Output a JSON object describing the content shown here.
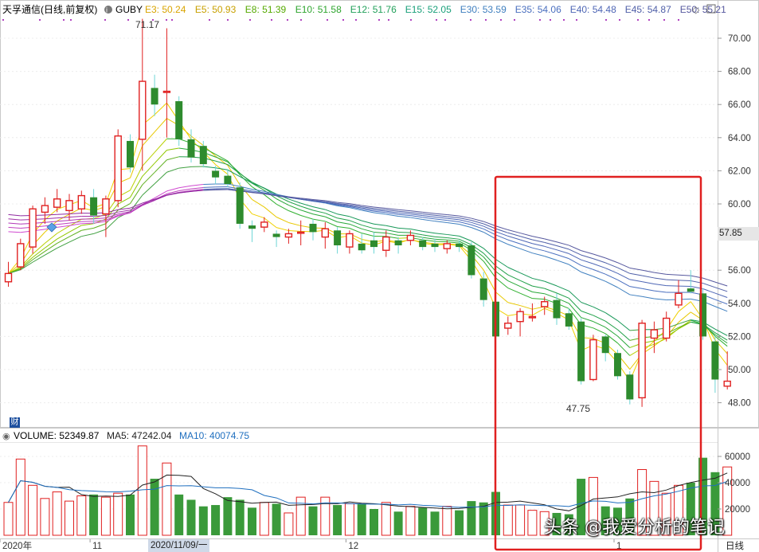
{
  "header": {
    "title": "天孚通信",
    "title_suffix": "(日线,前复权)",
    "indicator": "GUBY",
    "ma_items": [
      {
        "label": "E3: 50.24",
        "color": "#d9a400"
      },
      {
        "label": "E5: 50.93",
        "color": "#c8a000"
      },
      {
        "label": "E8: 51.39",
        "color": "#55a900"
      },
      {
        "label": "E10: 51.58",
        "color": "#2ea52e"
      },
      {
        "label": "E12: 51.76",
        "color": "#22a05a"
      },
      {
        "label": "E15: 52.05",
        "color": "#1aa07a"
      },
      {
        "label": "E30: 53.59",
        "color": "#3f7fbf"
      },
      {
        "label": "E35: 54.06",
        "color": "#4a6fbf"
      },
      {
        "label": "E40: 54.48",
        "color": "#4e66b5"
      },
      {
        "label": "E45: 54.87",
        "color": "#5060a8"
      },
      {
        "label": "E50: 55.21",
        "color": "#56589e"
      }
    ]
  },
  "volume_header": {
    "label": "VOLUME: 52349.87",
    "ma5": "MA5: 47242.04",
    "ma10": "MA10: 40074.75"
  },
  "price_axis_labels": [
    "70.00",
    "68.00",
    "66.00",
    "64.00",
    "62.00",
    "60.00",
    "56.00",
    "54.00",
    "52.00",
    "50.00",
    "48.00"
  ],
  "volume_axis_labels": [
    "60000",
    "40000",
    "20000"
  ],
  "current_price": "57.85",
  "high_label": "71.17",
  "low_label": "47.75",
  "x_labels": [
    "2020年",
    "11",
    "12",
    "1"
  ],
  "selected_date": "2020/11/09/一",
  "period_label": "日线",
  "watermark": "头条 @我爱分析的笔记",
  "cai_badge": "财",
  "colors": {
    "up": "#e02020",
    "down": "#2e8b2e",
    "highlight_box": "#e02020"
  },
  "chart_data": {
    "type": "candlestick",
    "title": "天孚通信 (日线,前复权)",
    "price_range": [
      47.0,
      71.5
    ],
    "volume_range": [
      0,
      65000
    ],
    "candles": [
      {
        "o": 55.3,
        "c": 55.8,
        "h": 56.5,
        "l": 55.0,
        "v": 25000
      },
      {
        "o": 56.2,
        "c": 57.6,
        "h": 57.9,
        "l": 56.0,
        "v": 58000
      },
      {
        "o": 57.4,
        "c": 59.7,
        "h": 59.9,
        "l": 57.0,
        "v": 38000
      },
      {
        "o": 59.5,
        "c": 59.9,
        "h": 60.4,
        "l": 58.8,
        "v": 28000
      },
      {
        "o": 59.8,
        "c": 60.3,
        "h": 60.9,
        "l": 59.5,
        "v": 33000
      },
      {
        "o": 59.6,
        "c": 60.2,
        "h": 60.6,
        "l": 59.0,
        "v": 26000
      },
      {
        "o": 59.7,
        "c": 60.5,
        "h": 60.8,
        "l": 59.4,
        "v": 30000
      },
      {
        "o": 60.4,
        "c": 59.3,
        "h": 60.9,
        "l": 58.8,
        "v": 31000
      },
      {
        "o": 59.4,
        "c": 60.3,
        "h": 60.5,
        "l": 58.0,
        "v": 29000
      },
      {
        "o": 60.2,
        "c": 64.1,
        "h": 64.5,
        "l": 59.8,
        "v": 32000
      },
      {
        "o": 63.8,
        "c": 62.2,
        "h": 64.2,
        "l": 61.9,
        "v": 31000
      },
      {
        "o": 63.9,
        "c": 67.4,
        "h": 71.17,
        "l": 62.0,
        "v": 68000
      },
      {
        "o": 67.0,
        "c": 66.0,
        "h": 67.8,
        "l": 65.3,
        "v": 43000
      },
      {
        "o": 66.8,
        "c": 66.8,
        "h": 70.6,
        "l": 64.0,
        "v": 55000
      },
      {
        "o": 66.2,
        "c": 63.9,
        "h": 66.5,
        "l": 63.5,
        "v": 31000
      },
      {
        "o": 63.9,
        "c": 62.8,
        "h": 64.5,
        "l": 62.5,
        "v": 27000
      },
      {
        "o": 63.5,
        "c": 62.4,
        "h": 63.8,
        "l": 62.2,
        "v": 22000
      },
      {
        "o": 62.0,
        "c": 61.6,
        "h": 62.3,
        "l": 61.2,
        "v": 23000
      },
      {
        "o": 61.7,
        "c": 61.2,
        "h": 62.1,
        "l": 61.0,
        "v": 29000
      },
      {
        "o": 61.0,
        "c": 58.8,
        "h": 61.3,
        "l": 58.5,
        "v": 27000
      },
      {
        "o": 58.7,
        "c": 58.5,
        "h": 59.0,
        "l": 57.7,
        "v": 21000
      },
      {
        "o": 58.6,
        "c": 58.9,
        "h": 59.2,
        "l": 58.3,
        "v": 25000
      },
      {
        "o": 58.2,
        "c": 58.0,
        "h": 58.4,
        "l": 57.4,
        "v": 24000
      },
      {
        "o": 58.0,
        "c": 58.2,
        "h": 58.5,
        "l": 57.6,
        "v": 17000
      },
      {
        "o": 58.3,
        "c": 58.3,
        "h": 59.0,
        "l": 57.5,
        "v": 29000
      },
      {
        "o": 58.8,
        "c": 58.3,
        "h": 59.1,
        "l": 57.8,
        "v": 22000
      },
      {
        "o": 58.0,
        "c": 58.5,
        "h": 58.9,
        "l": 57.3,
        "v": 29000
      },
      {
        "o": 58.4,
        "c": 57.5,
        "h": 58.6,
        "l": 57.0,
        "v": 23000
      },
      {
        "o": 57.4,
        "c": 58.2,
        "h": 58.4,
        "l": 57.0,
        "v": 24000
      },
      {
        "o": 57.6,
        "c": 57.2,
        "h": 58.2,
        "l": 57.0,
        "v": 24000
      },
      {
        "o": 57.8,
        "c": 57.4,
        "h": 58.3,
        "l": 57.0,
        "v": 20000
      },
      {
        "o": 57.2,
        "c": 58.0,
        "h": 58.4,
        "l": 56.8,
        "v": 25000
      },
      {
        "o": 57.8,
        "c": 57.5,
        "h": 58.0,
        "l": 57.0,
        "v": 18000
      },
      {
        "o": 57.8,
        "c": 58.1,
        "h": 58.4,
        "l": 57.5,
        "v": 22000
      },
      {
        "o": 57.8,
        "c": 57.4,
        "h": 58.0,
        "l": 57.2,
        "v": 21000
      },
      {
        "o": 57.6,
        "c": 57.4,
        "h": 57.9,
        "l": 57.1,
        "v": 18000
      },
      {
        "o": 57.3,
        "c": 57.6,
        "h": 57.8,
        "l": 57.0,
        "v": 22000
      },
      {
        "o": 57.6,
        "c": 57.4,
        "h": 57.8,
        "l": 57.1,
        "v": 19000
      },
      {
        "o": 57.5,
        "c": 55.7,
        "h": 57.7,
        "l": 55.5,
        "v": 26000
      },
      {
        "o": 55.5,
        "c": 54.2,
        "h": 55.9,
        "l": 53.8,
        "v": 25000
      },
      {
        "o": 54.1,
        "c": 52.0,
        "h": 54.5,
        "l": 51.9,
        "v": 33000
      },
      {
        "o": 52.5,
        "c": 52.8,
        "h": 53.2,
        "l": 52.1,
        "v": 23000
      },
      {
        "o": 52.9,
        "c": 53.5,
        "h": 53.7,
        "l": 52.0,
        "v": 23000
      },
      {
        "o": 53.2,
        "c": 53.2,
        "h": 54.0,
        "l": 52.9,
        "v": 19000
      },
      {
        "o": 53.8,
        "c": 54.1,
        "h": 54.4,
        "l": 53.3,
        "v": 18000
      },
      {
        "o": 54.2,
        "c": 53.1,
        "h": 54.6,
        "l": 52.7,
        "v": 17000
      },
      {
        "o": 53.4,
        "c": 52.6,
        "h": 53.7,
        "l": 52.4,
        "v": 16000
      },
      {
        "o": 52.9,
        "c": 49.3,
        "h": 53.1,
        "l": 49.1,
        "v": 43000
      },
      {
        "o": 49.4,
        "c": 51.8,
        "h": 52.1,
        "l": 49.3,
        "v": 44000
      },
      {
        "o": 52.0,
        "c": 51.0,
        "h": 52.1,
        "l": 50.5,
        "v": 22000
      },
      {
        "o": 51.0,
        "c": 49.6,
        "h": 51.2,
        "l": 49.4,
        "v": 21000
      },
      {
        "o": 49.7,
        "c": 48.2,
        "h": 49.9,
        "l": 47.9,
        "v": 28000
      },
      {
        "o": 48.3,
        "c": 52.8,
        "h": 53.0,
        "l": 47.75,
        "v": 50000
      },
      {
        "o": 51.9,
        "c": 52.4,
        "h": 52.9,
        "l": 51.0,
        "v": 41000
      },
      {
        "o": 51.9,
        "c": 53.1,
        "h": 53.5,
        "l": 51.7,
        "v": 32000
      },
      {
        "o": 53.9,
        "c": 54.6,
        "h": 55.4,
        "l": 53.7,
        "v": 38000
      },
      {
        "o": 54.9,
        "c": 54.7,
        "h": 56.0,
        "l": 54.6,
        "v": 40000
      },
      {
        "o": 54.6,
        "c": 52.0,
        "h": 54.9,
        "l": 51.8,
        "v": 59000
      },
      {
        "o": 51.7,
        "c": 49.4,
        "h": 52.0,
        "l": 48.6,
        "v": 48000
      },
      {
        "o": 49.0,
        "c": 49.3,
        "h": 51.1,
        "l": 48.8,
        "v": 52000
      }
    ]
  }
}
